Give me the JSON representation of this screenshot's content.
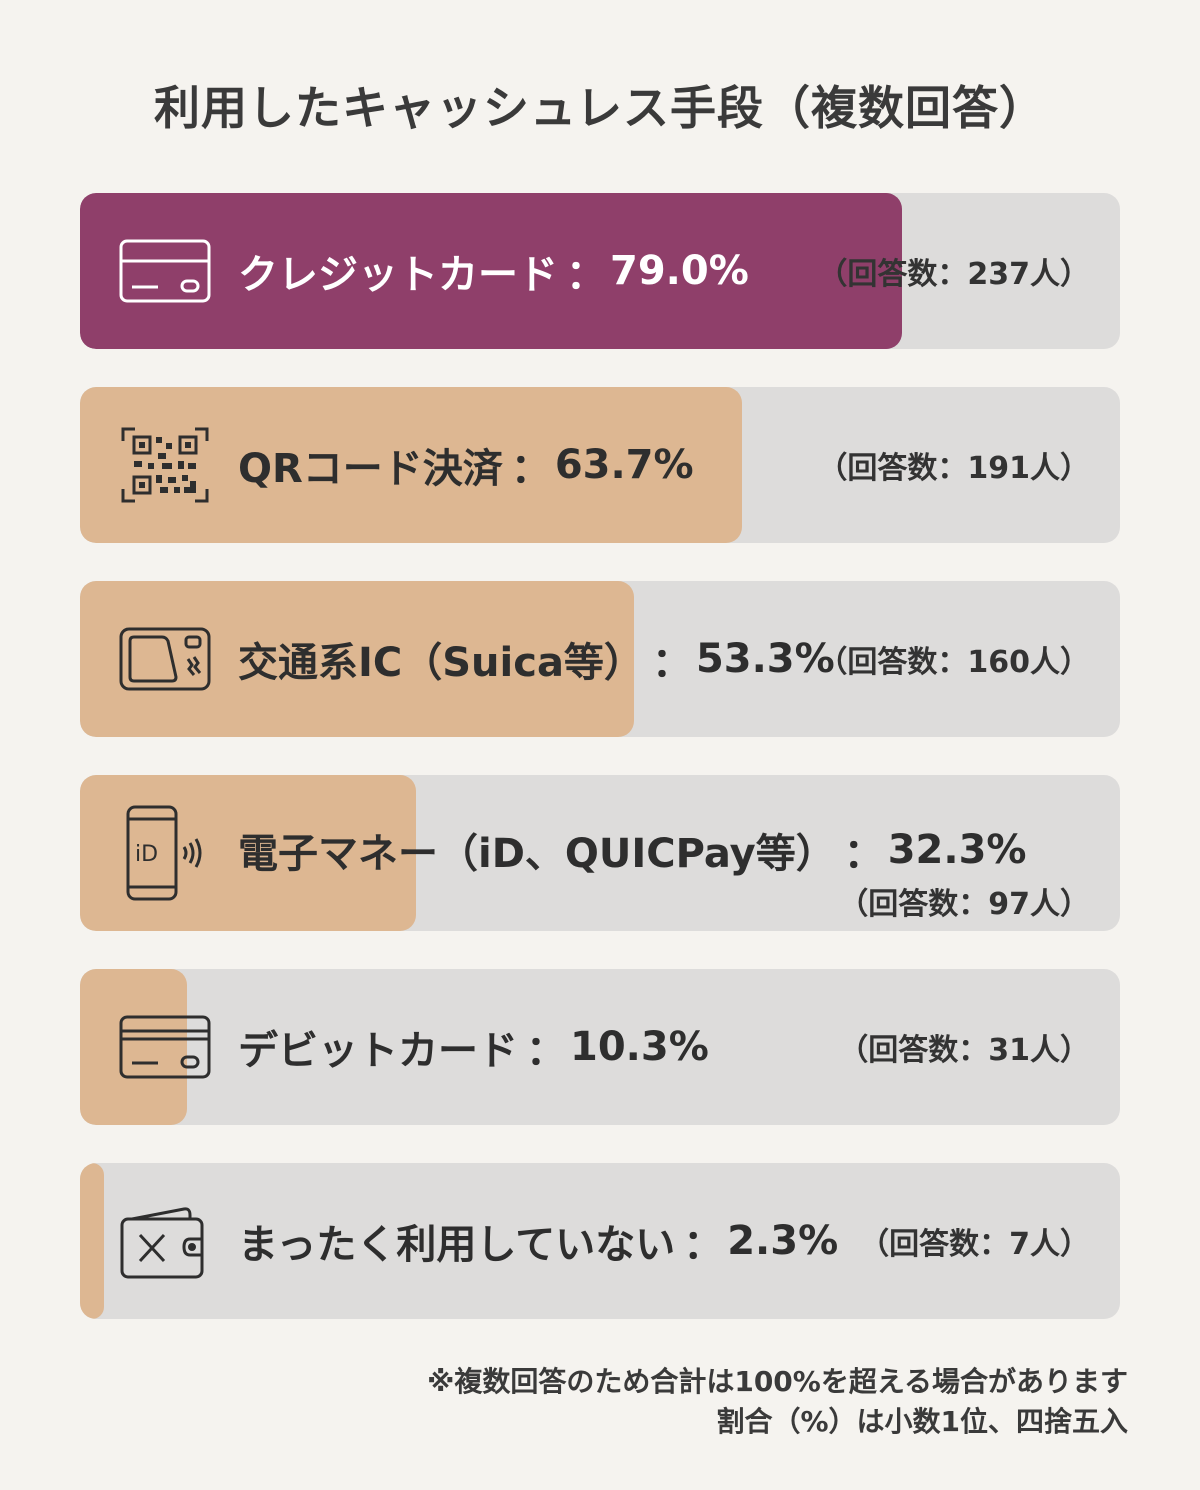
{
  "title": "利用したキャッシュレス手段（複数回答）",
  "colors": {
    "highlight": "#8f3f6a",
    "fill": "#ddb792",
    "track": "#dddcdb",
    "background": "#f5f3ef"
  },
  "chart_data": {
    "type": "bar",
    "orientation": "horizontal",
    "title": "利用したキャッシュレス手段（複数回答）",
    "xlim": [
      0,
      100
    ],
    "unit": "%",
    "categories": [
      "クレジットカード",
      "QRコード決済",
      "交通系IC（Suica等）",
      "電子マネー（iD、QUICPay等）",
      "デビットカード",
      "まったく利用していない"
    ],
    "values": [
      79.0,
      63.7,
      53.3,
      32.3,
      10.3,
      2.3
    ],
    "rows": [
      {
        "label": "クレジットカード",
        "sep": "：",
        "pct": "79.0%",
        "value": 79.0,
        "count_text": "（回答数：237人）",
        "count": 237,
        "icon": "credit-card-icon",
        "color": "#8f3f6a"
      },
      {
        "label": "QRコード決済",
        "sep": "：",
        "pct": "63.7%",
        "value": 63.7,
        "count_text": "（回答数：191人）",
        "count": 191,
        "icon": "qr-code-icon",
        "color": "#ddb792"
      },
      {
        "label": "交通系IC（Suica等）",
        "sep": "：",
        "pct": "53.3%",
        "value": 53.3,
        "count_text": "（回答数：160人）",
        "count": 160,
        "icon": "ic-card-icon",
        "color": "#ddb792"
      },
      {
        "label": "電子マネー（iD、QUICPay等）",
        "sep": "：",
        "pct": "32.3%",
        "value": 32.3,
        "count_text": "（回答数：97人）",
        "count": 97,
        "icon": "smartphone-id-icon",
        "color": "#ddb792"
      },
      {
        "label": "デビットカード",
        "sep": "：",
        "pct": "10.3%",
        "value": 10.3,
        "count_text": "（回答数：31人）",
        "count": 31,
        "icon": "debit-card-icon",
        "color": "#ddb792"
      },
      {
        "label": "まったく利用していない",
        "sep": "：",
        "pct": "2.3%",
        "value": 2.3,
        "count_text": "（回答数：7人）",
        "count": 7,
        "icon": "wallet-x-icon",
        "color": "#ddb792"
      }
    ]
  },
  "footnote": {
    "line1": "※複数回答のため合計は100%を超える場合があります",
    "line2": "割合（%）は小数1位、四捨五入"
  }
}
